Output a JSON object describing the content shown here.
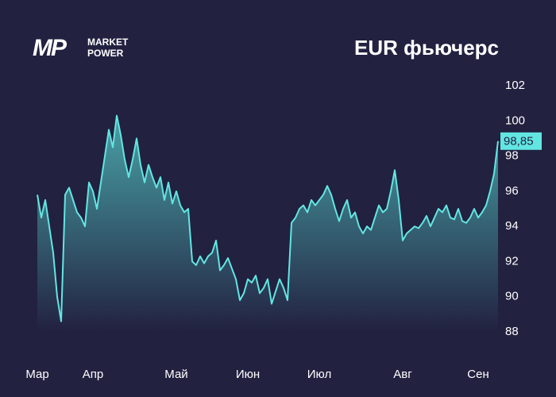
{
  "brand": {
    "logo": "MP",
    "line1": "MARKET",
    "line2": "POWER"
  },
  "chart_data": {
    "type": "area",
    "title": "EUR фьючерс",
    "color": "#62e6e2",
    "categories": [
      "Мар",
      null,
      null,
      null,
      null,
      null,
      null,
      null,
      null,
      null,
      null,
      null,
      null,
      null,
      "Апр",
      null,
      null,
      null,
      null,
      null,
      null,
      null,
      null,
      null,
      null,
      null,
      null,
      null,
      null,
      null,
      null,
      null,
      null,
      null,
      null,
      "Май",
      null,
      null,
      null,
      null,
      null,
      null,
      null,
      null,
      null,
      null,
      null,
      null,
      null,
      null,
      null,
      null,
      null,
      "Июн",
      null,
      null,
      null,
      null,
      null,
      null,
      null,
      null,
      null,
      null,
      null,
      null,
      null,
      null,
      null,
      null,
      null,
      "Июл",
      null,
      null,
      null,
      null,
      null,
      null,
      null,
      null,
      null,
      null,
      null,
      null,
      null,
      null,
      null,
      null,
      null,
      null,
      null,
      null,
      "Авг",
      null,
      null,
      null,
      null,
      null,
      null,
      null,
      null,
      null,
      null,
      null,
      null,
      null,
      null,
      null,
      null,
      null,
      null,
      "Сен",
      null,
      null,
      null,
      null,
      null
    ],
    "values": [
      95.8,
      94.5,
      95.5,
      94,
      92.5,
      90,
      88.6,
      95.8,
      96.2,
      95.5,
      94.8,
      94.5,
      94,
      96.5,
      96,
      95,
      96.5,
      98,
      99.5,
      98.5,
      100.3,
      99.2,
      97.8,
      96.8,
      97.8,
      99,
      97.5,
      96.5,
      97.5,
      96.8,
      96.2,
      96.8,
      95.5,
      96.5,
      95.3,
      96,
      95.2,
      94.8,
      95,
      92,
      91.8,
      92.3,
      91.9,
      92.3,
      92.5,
      93.2,
      91.5,
      91.8,
      92.2,
      91.6,
      91,
      89.8,
      90.2,
      91,
      90.8,
      91.2,
      90.2,
      90.5,
      91,
      89.6,
      90.3,
      91,
      90.5,
      89.8,
      94.2,
      94.5,
      95,
      95.2,
      94.8,
      95.5,
      95.2,
      95.5,
      95.8,
      96.3,
      95.8,
      95,
      94.3,
      95,
      95.5,
      94.5,
      94.8,
      94,
      93.6,
      94,
      93.8,
      94.5,
      95.2,
      94.8,
      95,
      96,
      97.2,
      95.5,
      93.2,
      93.6,
      93.8,
      94,
      93.9,
      94.2,
      94.6,
      94,
      94.5,
      95,
      94.8,
      95.2,
      94.5,
      94.4,
      95,
      94.3,
      94.2,
      94.5,
      95,
      94.5,
      94.8,
      95.2,
      96,
      97,
      98.85
    ],
    "value_labels": [
      null,
      null,
      null,
      null,
      null,
      null,
      null,
      null,
      null,
      null,
      null,
      null,
      null,
      null,
      null,
      null,
      null,
      null,
      null,
      null,
      null,
      null,
      null,
      null,
      null,
      null,
      null,
      null,
      null,
      null,
      null,
      null,
      null,
      null,
      null,
      null,
      null,
      null,
      null,
      null,
      null,
      null,
      null,
      null,
      null,
      null,
      null,
      null,
      null,
      null,
      null,
      null,
      null,
      null,
      null,
      null,
      null,
      null,
      null,
      null,
      null,
      null,
      null,
      null,
      null,
      null,
      null,
      null,
      null,
      null,
      null,
      null,
      null,
      null,
      null,
      null,
      null,
      null,
      null,
      null,
      null,
      null,
      null,
      null,
      null,
      null,
      null,
      null,
      null,
      null,
      null,
      null,
      null,
      null,
      null,
      null,
      null,
      null,
      null,
      null,
      null,
      null,
      null,
      null,
      null,
      null,
      null,
      null,
      null,
      null,
      null,
      null,
      null,
      null,
      null,
      null,
      "98,85"
    ],
    "ylim": [
      88,
      102
    ],
    "yticks": [
      88,
      90,
      92,
      94,
      96,
      98,
      100,
      102
    ],
    "grid": false
  }
}
